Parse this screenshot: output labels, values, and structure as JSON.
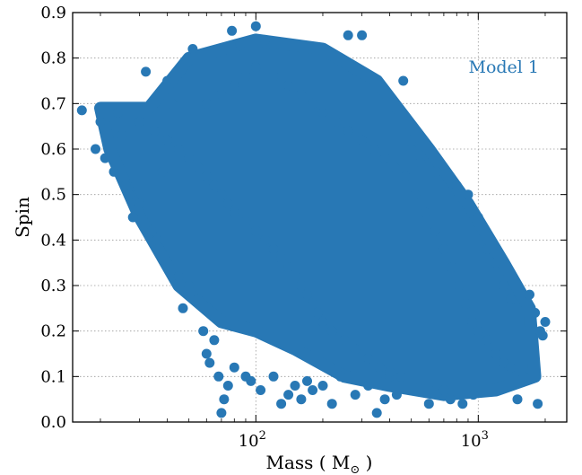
{
  "chart_data": {
    "type": "scatter",
    "title": "",
    "xlabel": "Mass ( M",
    "xlabel_sub": "⊙",
    "xlabel_close": " )",
    "ylabel": "Spin",
    "x_scale": "log",
    "xlim": [
      15,
      2500
    ],
    "ylim": [
      0.0,
      0.9
    ],
    "x_ticks": [
      {
        "value": 100,
        "base": "10",
        "exp": "2"
      },
      {
        "value": 1000,
        "base": "10",
        "exp": "3"
      }
    ],
    "y_ticks": [
      "0.0",
      "0.1",
      "0.2",
      "0.3",
      "0.4",
      "0.5",
      "0.6",
      "0.7",
      "0.8",
      "0.9"
    ],
    "grid": true,
    "annotation": "Model 1",
    "series": [
      {
        "color": "#2878b5",
        "points": [
          [
            16.5,
            0.685
          ],
          [
            19,
            0.6
          ],
          [
            20,
            0.66
          ],
          [
            21,
            0.58
          ],
          [
            23,
            0.55
          ],
          [
            24,
            0.68
          ],
          [
            25,
            0.63
          ],
          [
            26,
            0.52
          ],
          [
            27,
            0.5
          ],
          [
            28,
            0.45
          ],
          [
            30,
            0.48
          ],
          [
            32,
            0.77
          ],
          [
            34,
            0.42
          ],
          [
            36,
            0.4
          ],
          [
            38,
            0.55
          ],
          [
            40,
            0.75
          ],
          [
            42,
            0.7
          ],
          [
            45,
            0.32
          ],
          [
            47,
            0.25
          ],
          [
            50,
            0.3
          ],
          [
            52,
            0.82
          ],
          [
            55,
            0.27
          ],
          [
            58,
            0.2
          ],
          [
            60,
            0.15
          ],
          [
            62,
            0.13
          ],
          [
            65,
            0.18
          ],
          [
            68,
            0.1
          ],
          [
            70,
            0.02
          ],
          [
            72,
            0.05
          ],
          [
            75,
            0.08
          ],
          [
            78,
            0.86
          ],
          [
            80,
            0.12
          ],
          [
            85,
            0.83
          ],
          [
            90,
            0.1
          ],
          [
            95,
            0.09
          ],
          [
            100,
            0.87
          ],
          [
            105,
            0.07
          ],
          [
            110,
            0.84
          ],
          [
            120,
            0.1
          ],
          [
            130,
            0.04
          ],
          [
            140,
            0.06
          ],
          [
            150,
            0.08
          ],
          [
            160,
            0.05
          ],
          [
            170,
            0.09
          ],
          [
            180,
            0.07
          ],
          [
            200,
            0.08
          ],
          [
            220,
            0.04
          ],
          [
            240,
            0.1
          ],
          [
            260,
            0.85
          ],
          [
            280,
            0.06
          ],
          [
            300,
            0.85
          ],
          [
            320,
            0.08
          ],
          [
            350,
            0.02
          ],
          [
            380,
            0.05
          ],
          [
            400,
            0.1
          ],
          [
            430,
            0.06
          ],
          [
            460,
            0.75
          ],
          [
            500,
            0.6
          ],
          [
            550,
            0.57
          ],
          [
            600,
            0.04
          ],
          [
            650,
            0.55
          ],
          [
            700,
            0.07
          ],
          [
            750,
            0.05
          ],
          [
            800,
            0.52
          ],
          [
            850,
            0.04
          ],
          [
            900,
            0.5
          ],
          [
            950,
            0.06
          ],
          [
            1000,
            0.45
          ],
          [
            1100,
            0.38
          ],
          [
            1200,
            0.35
          ],
          [
            1300,
            0.3
          ],
          [
            1400,
            0.27
          ],
          [
            1500,
            0.05
          ],
          [
            1600,
            0.1
          ],
          [
            1700,
            0.28
          ],
          [
            1800,
            0.24
          ],
          [
            1900,
            0.2
          ],
          [
            2000,
            0.22
          ],
          [
            1950,
            0.19
          ],
          [
            1850,
            0.04
          ],
          [
            30,
            0.66
          ],
          [
            35,
            0.64
          ],
          [
            40,
            0.62
          ],
          [
            45,
            0.6
          ],
          [
            50,
            0.58
          ],
          [
            55,
            0.56
          ],
          [
            60,
            0.54
          ],
          [
            65,
            0.52
          ],
          [
            70,
            0.5
          ],
          [
            75,
            0.48
          ],
          [
            80,
            0.46
          ],
          [
            90,
            0.44
          ],
          [
            100,
            0.42
          ],
          [
            110,
            0.4
          ],
          [
            120,
            0.38
          ],
          [
            130,
            0.36
          ],
          [
            140,
            0.34
          ],
          [
            150,
            0.32
          ],
          [
            160,
            0.3
          ],
          [
            170,
            0.28
          ],
          [
            180,
            0.26
          ],
          [
            190,
            0.24
          ],
          [
            200,
            0.22
          ],
          [
            220,
            0.2
          ],
          [
            250,
            0.18
          ],
          [
            280,
            0.16
          ],
          [
            320,
            0.14
          ],
          [
            360,
            0.12
          ],
          [
            400,
            0.11
          ],
          [
            450,
            0.1
          ],
          [
            60,
            0.7
          ],
          [
            70,
            0.72
          ],
          [
            80,
            0.74
          ],
          [
            90,
            0.76
          ],
          [
            100,
            0.78
          ],
          [
            120,
            0.76
          ],
          [
            140,
            0.74
          ],
          [
            160,
            0.72
          ],
          [
            180,
            0.7
          ],
          [
            200,
            0.68
          ],
          [
            230,
            0.66
          ],
          [
            260,
            0.64
          ],
          [
            300,
            0.62
          ],
          [
            340,
            0.6
          ],
          [
            380,
            0.58
          ],
          [
            420,
            0.56
          ],
          [
            470,
            0.54
          ],
          [
            520,
            0.5
          ],
          [
            580,
            0.46
          ],
          [
            640,
            0.42
          ],
          [
            700,
            0.38
          ],
          [
            760,
            0.34
          ],
          [
            820,
            0.3
          ],
          [
            880,
            0.26
          ],
          [
            940,
            0.22
          ],
          [
            1000,
            0.2
          ],
          [
            1100,
            0.18
          ],
          [
            1200,
            0.15
          ],
          [
            1300,
            0.13
          ],
          [
            1400,
            0.12
          ]
        ]
      }
    ]
  }
}
